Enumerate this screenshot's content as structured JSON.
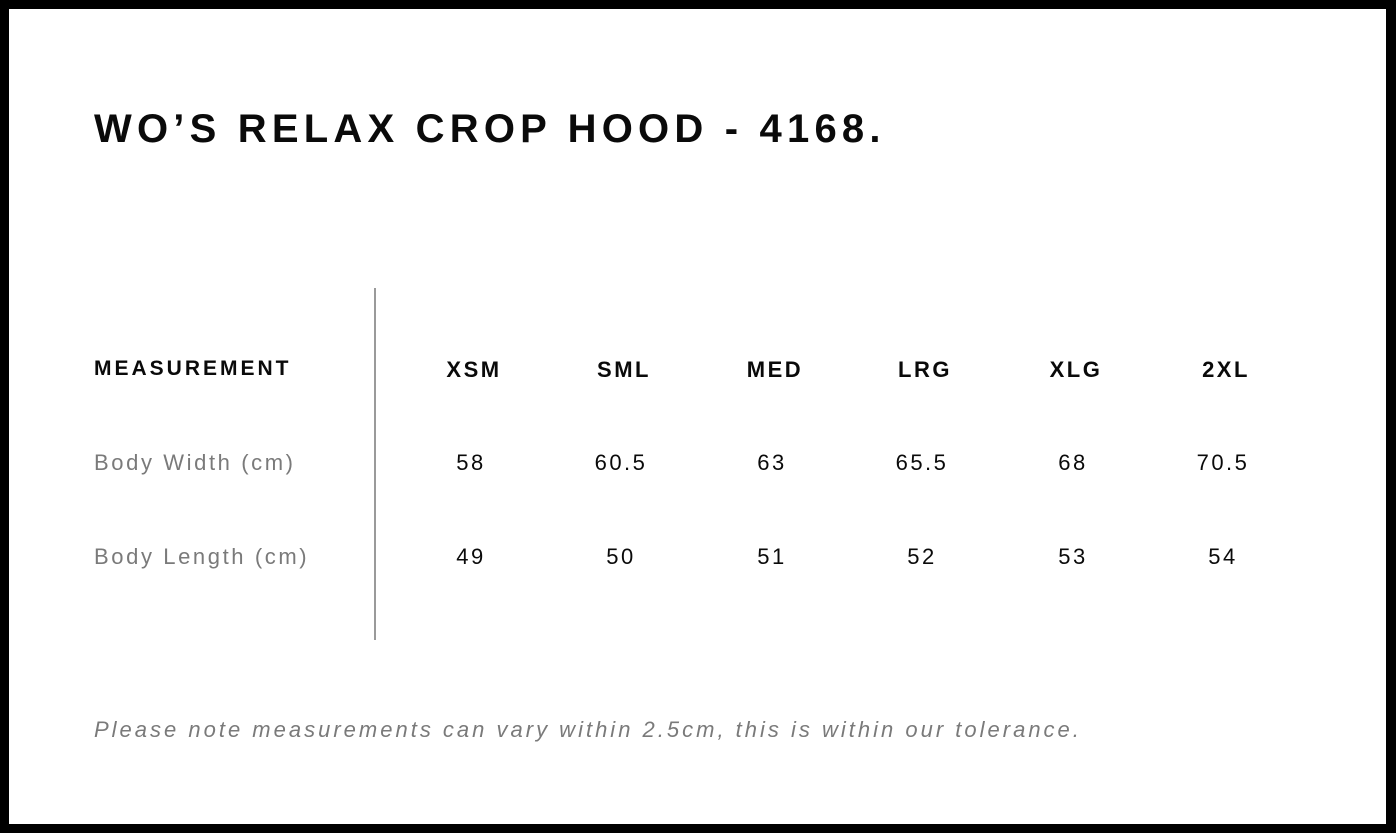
{
  "title": "WO’S RELAX CROP HOOD - 4168.",
  "table": {
    "header_label": "MEASUREMENT",
    "sizes": [
      "XSM",
      "SML",
      "MED",
      "LRG",
      "XLG",
      "2XL"
    ],
    "rows": [
      {
        "label": "Body Width (cm)",
        "values": [
          "58",
          "60.5",
          "63",
          "65.5",
          "68",
          "70.5"
        ]
      },
      {
        "label": "Body Length (cm)",
        "values": [
          "49",
          "50",
          "51",
          "52",
          "53",
          "54"
        ]
      }
    ]
  },
  "note": "Please note measurements can vary within 2.5cm, this is within our tolerance.",
  "colors": {
    "border": "#000000",
    "text": "#0a0a0a",
    "muted": "#7a7a7a"
  }
}
